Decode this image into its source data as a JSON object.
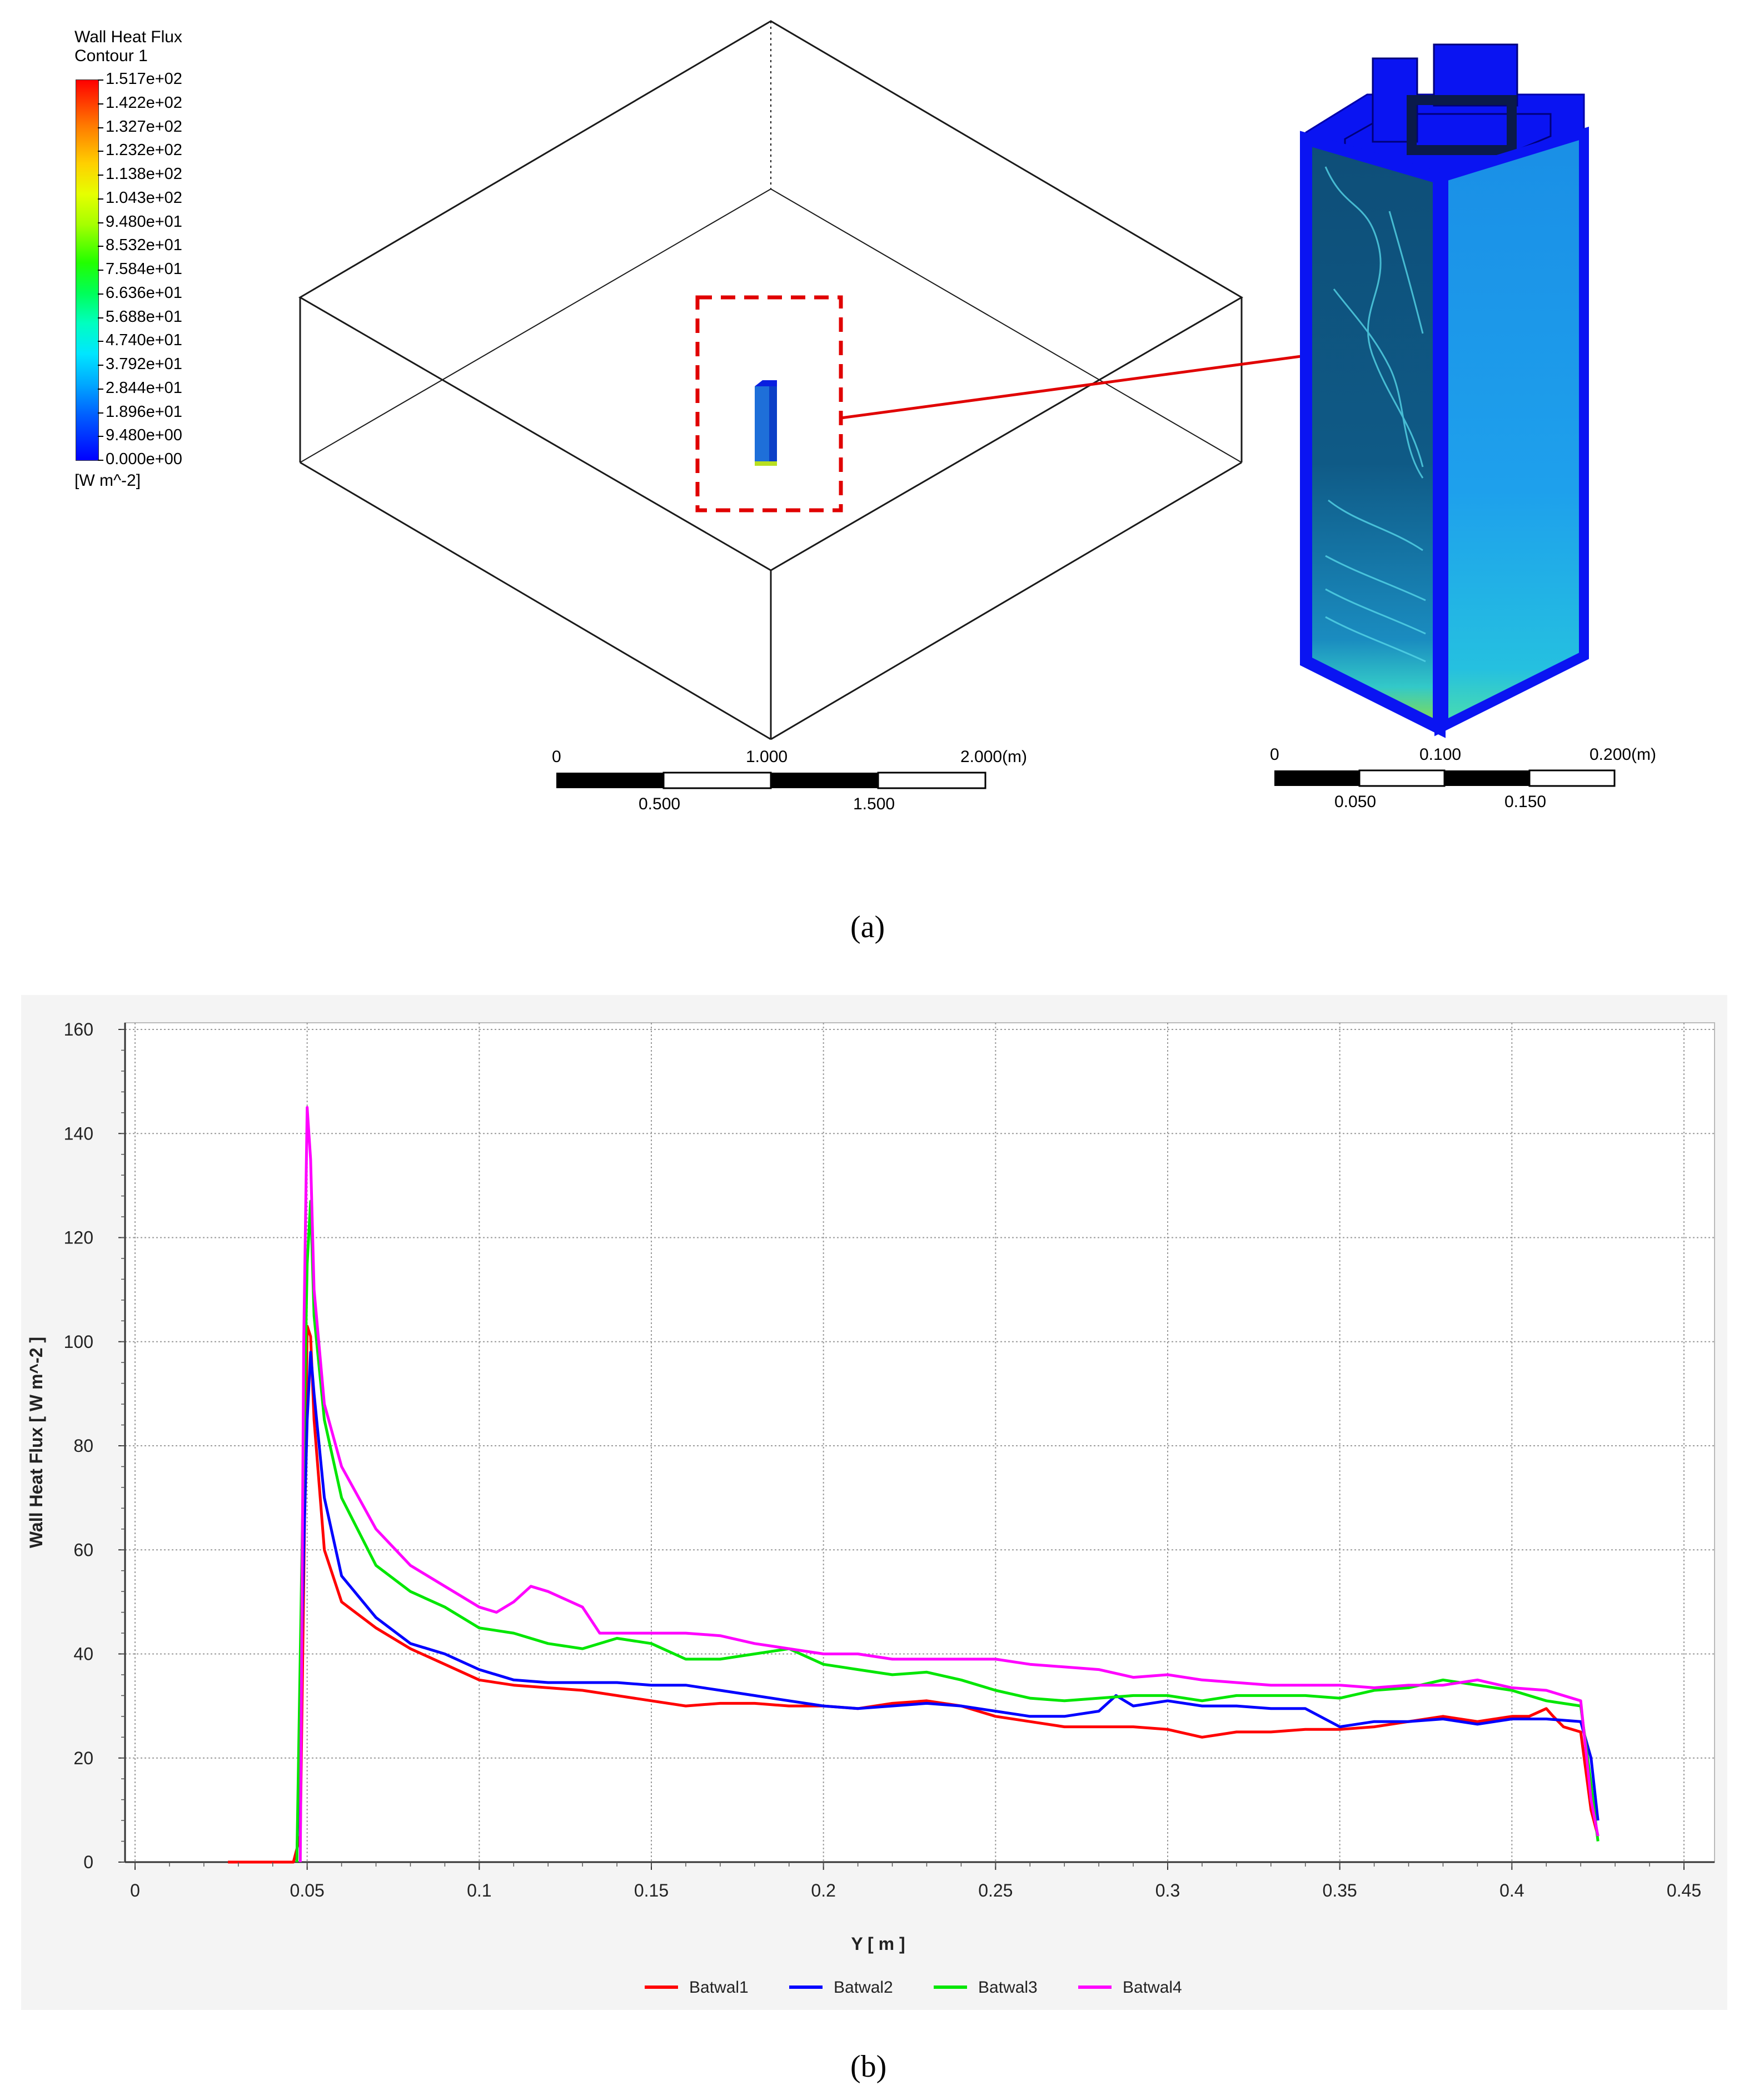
{
  "panel_a": {
    "legend": {
      "title_line1": "Wall Heat Flux",
      "title_line2": "Contour 1",
      "ticks": [
        "1.517e+02",
        "1.422e+02",
        "1.327e+02",
        "1.232e+02",
        "1.138e+02",
        "1.043e+02",
        "9.480e+01",
        "8.532e+01",
        "7.584e+01",
        "6.636e+01",
        "5.688e+01",
        "4.740e+01",
        "3.792e+01",
        "2.844e+01",
        "1.896e+01",
        "9.480e+00",
        "0.000e+00"
      ],
      "unit": "[W m^-2]",
      "colormap": [
        "#ff0000",
        "#ff7a00",
        "#ffd000",
        "#a6ff00",
        "#00ff58",
        "#00e6ff",
        "#00a8ff",
        "#0000ff"
      ]
    },
    "scale_left": {
      "top_labels": [
        "0",
        "1.000",
        "2.000"
      ],
      "bottom_labels": [
        "0.500",
        "1.500"
      ],
      "unit": "(m)"
    },
    "scale_right": {
      "top_labels": [
        "0",
        "0.100",
        "0.200"
      ],
      "bottom_labels": [
        "0.050",
        "0.150"
      ],
      "unit": "(m)"
    },
    "highlight_color": "#e00000",
    "caption": "(a)"
  },
  "panel_b": {
    "caption": "(b)",
    "chart_data": {
      "type": "line",
      "title": "",
      "xlabel": "Y [ m ]",
      "ylabel": "Wall Heat Flux [ W m^-2 ]",
      "xlim": [
        0,
        0.45
      ],
      "ylim": [
        0,
        160
      ],
      "xticks": [
        "0",
        "0.05",
        "0.1",
        "0.15",
        "0.2",
        "0.25",
        "0.3",
        "0.35",
        "0.4",
        "0.45"
      ],
      "yticks": [
        "0",
        "20",
        "40",
        "60",
        "80",
        "100",
        "120",
        "140",
        "160"
      ],
      "grid": true,
      "legend_position": "bottom-center",
      "series": [
        {
          "name": "Batwal1",
          "color": "#ff0000",
          "x": [
            0.027,
            0.04,
            0.046,
            0.048,
            0.05,
            0.051,
            0.052,
            0.055,
            0.06,
            0.07,
            0.08,
            0.09,
            0.1,
            0.11,
            0.12,
            0.13,
            0.14,
            0.15,
            0.16,
            0.17,
            0.18,
            0.19,
            0.2,
            0.21,
            0.22,
            0.23,
            0.24,
            0.25,
            0.26,
            0.27,
            0.28,
            0.29,
            0.3,
            0.31,
            0.315,
            0.32,
            0.33,
            0.34,
            0.35,
            0.36,
            0.37,
            0.38,
            0.39,
            0.4,
            0.405,
            0.41,
            0.412,
            0.415,
            0.42,
            0.423,
            0.425
          ],
          "y": [
            0,
            0,
            0,
            5,
            103,
            101,
            85,
            60,
            50,
            45,
            41,
            38,
            35,
            34,
            33.5,
            33,
            32,
            31,
            30,
            30.5,
            30.5,
            30,
            30,
            29.5,
            30.5,
            31,
            30,
            28,
            27,
            26,
            26,
            26,
            25.5,
            24,
            24.5,
            25,
            25,
            25.5,
            25.5,
            26,
            27,
            28,
            27,
            28,
            28,
            29.5,
            28,
            26,
            25,
            10,
            5
          ]
        },
        {
          "name": "Batwal2",
          "color": "#0000ff",
          "x": [
            0.047,
            0.049,
            0.05,
            0.051,
            0.052,
            0.055,
            0.06,
            0.07,
            0.08,
            0.09,
            0.1,
            0.11,
            0.12,
            0.13,
            0.14,
            0.15,
            0.16,
            0.17,
            0.18,
            0.19,
            0.2,
            0.21,
            0.22,
            0.23,
            0.24,
            0.25,
            0.26,
            0.27,
            0.28,
            0.285,
            0.29,
            0.3,
            0.31,
            0.32,
            0.33,
            0.34,
            0.35,
            0.36,
            0.37,
            0.38,
            0.39,
            0.4,
            0.41,
            0.42,
            0.423,
            0.425
          ],
          "y": [
            0,
            60,
            85,
            98,
            90,
            70,
            55,
            47,
            42,
            40,
            37,
            35,
            34.5,
            34.5,
            34.5,
            34,
            34,
            33,
            32,
            31,
            30,
            29.5,
            30,
            30.5,
            30,
            29,
            28,
            28,
            29,
            32,
            30,
            31,
            30,
            30,
            29.5,
            29.5,
            26,
            27,
            27,
            27.5,
            26.5,
            27.5,
            27.5,
            27,
            20,
            8
          ]
        },
        {
          "name": "Batwal3",
          "color": "#00e600",
          "x": [
            0.047,
            0.049,
            0.05,
            0.051,
            0.052,
            0.055,
            0.06,
            0.07,
            0.08,
            0.09,
            0.1,
            0.11,
            0.12,
            0.13,
            0.14,
            0.15,
            0.16,
            0.17,
            0.18,
            0.19,
            0.2,
            0.21,
            0.22,
            0.23,
            0.24,
            0.25,
            0.26,
            0.27,
            0.28,
            0.29,
            0.3,
            0.31,
            0.32,
            0.33,
            0.34,
            0.35,
            0.36,
            0.37,
            0.38,
            0.39,
            0.4,
            0.41,
            0.42,
            0.423,
            0.425
          ],
          "y": [
            0,
            80,
            115,
            127,
            105,
            85,
            70,
            57,
            52,
            49,
            45,
            44,
            42,
            41,
            43,
            42,
            39,
            39,
            40,
            41,
            38,
            37,
            36,
            36.5,
            35,
            33,
            31.5,
            31,
            31.5,
            32,
            32,
            31,
            32,
            32,
            32,
            31.5,
            33,
            33.5,
            35,
            34,
            33,
            31,
            30,
            15,
            4
          ]
        },
        {
          "name": "Batwal4",
          "color": "#ff00ff",
          "x": [
            0.048,
            0.049,
            0.05,
            0.051,
            0.052,
            0.055,
            0.06,
            0.07,
            0.08,
            0.09,
            0.1,
            0.105,
            0.11,
            0.115,
            0.12,
            0.13,
            0.135,
            0.14,
            0.15,
            0.16,
            0.17,
            0.18,
            0.19,
            0.2,
            0.21,
            0.22,
            0.23,
            0.24,
            0.25,
            0.26,
            0.27,
            0.28,
            0.29,
            0.3,
            0.31,
            0.32,
            0.33,
            0.34,
            0.35,
            0.36,
            0.37,
            0.38,
            0.39,
            0.4,
            0.41,
            0.42,
            0.423,
            0.425
          ],
          "y": [
            0,
            100,
            145,
            135,
            110,
            88,
            76,
            64,
            57,
            53,
            49,
            48,
            50,
            53,
            52,
            49,
            44,
            44,
            44,
            44,
            43.5,
            42,
            41,
            40,
            40,
            39,
            39,
            39,
            39,
            38,
            37.5,
            37,
            35.5,
            36,
            35,
            34.5,
            34,
            34,
            34,
            33.5,
            34,
            34,
            35,
            33.5,
            33,
            31,
            12,
            5
          ]
        }
      ]
    }
  }
}
